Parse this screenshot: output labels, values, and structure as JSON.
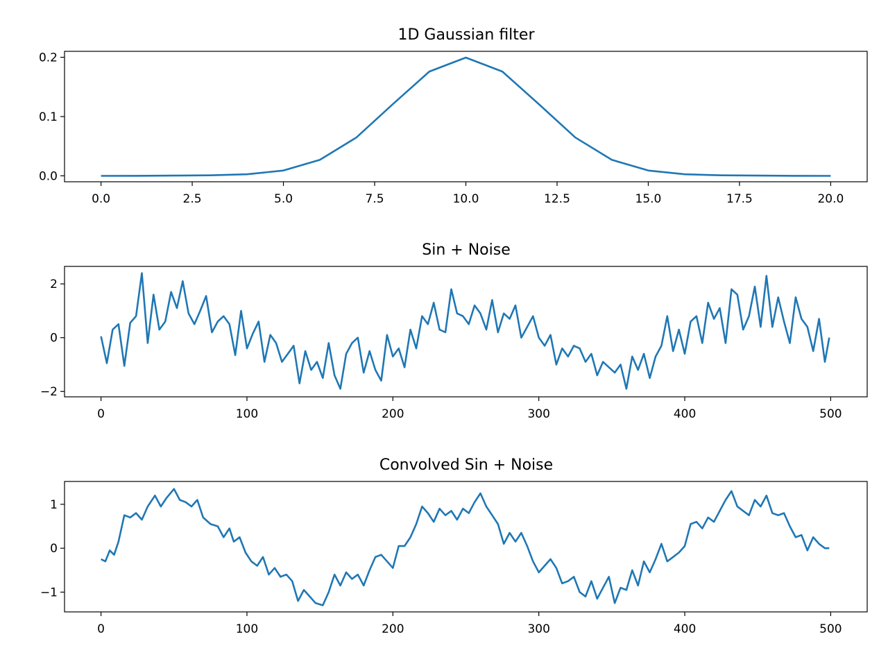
{
  "chart_data": [
    {
      "type": "line",
      "title": "1D Gaussian filter",
      "xlabel": "",
      "ylabel": "",
      "xlim": [
        -1,
        21
      ],
      "ylim": [
        -0.01,
        0.21
      ],
      "xticks": [
        0,
        2.5,
        5,
        7.5,
        10,
        12.5,
        15,
        17.5,
        20
      ],
      "xtick_labels": [
        "0.0",
        "2.5",
        "5.0",
        "7.5",
        "10.0",
        "12.5",
        "15.0",
        "17.5",
        "20.0"
      ],
      "yticks": [
        0,
        0.1,
        0.2
      ],
      "ytick_labels": [
        "0.0",
        "0.1",
        "0.2"
      ],
      "grid": false,
      "color": "#1f77b4",
      "series": [
        {
          "x": [
            0,
            1,
            2,
            3,
            4,
            5,
            6,
            7,
            8,
            9,
            10,
            11,
            12,
            13,
            14,
            15,
            16,
            17,
            18,
            19,
            20
          ],
          "y": [
            0.0,
            0.0001,
            0.0004,
            0.0009,
            0.0026,
            0.0089,
            0.027,
            0.0647,
            0.1209,
            0.176,
            0.1995,
            0.176,
            0.1209,
            0.0647,
            0.027,
            0.0089,
            0.0026,
            0.0009,
            0.0004,
            0.0001,
            0.0
          ]
        }
      ]
    },
    {
      "type": "line",
      "title": "Sin + Noise",
      "xlabel": "",
      "ylabel": "",
      "xlim": [
        -25,
        525
      ],
      "ylim": [
        -2.2,
        2.65
      ],
      "xticks": [
        0,
        100,
        200,
        300,
        400,
        500
      ],
      "xtick_labels": [
        "0",
        "100",
        "200",
        "300",
        "400",
        "500"
      ],
      "yticks": [
        -2,
        0,
        2
      ],
      "ytick_labels": [
        "−2",
        "0",
        "2"
      ],
      "grid": false,
      "color": "#1f77b4",
      "series": [
        {
          "x": [
            0,
            4,
            8,
            12,
            16,
            20,
            24,
            28,
            32,
            36,
            40,
            44,
            48,
            52,
            56,
            60,
            64,
            68,
            72,
            76,
            80,
            84,
            88,
            92,
            96,
            100,
            104,
            108,
            112,
            116,
            120,
            124,
            128,
            132,
            136,
            140,
            144,
            148,
            152,
            156,
            160,
            164,
            168,
            172,
            176,
            180,
            184,
            188,
            192,
            196,
            200,
            204,
            208,
            212,
            216,
            220,
            224,
            228,
            232,
            236,
            240,
            244,
            248,
            252,
            256,
            260,
            264,
            268,
            272,
            276,
            280,
            284,
            288,
            292,
            296,
            300,
            304,
            308,
            312,
            316,
            320,
            324,
            328,
            332,
            336,
            340,
            344,
            348,
            352,
            356,
            360,
            364,
            368,
            372,
            376,
            380,
            384,
            388,
            392,
            396,
            400,
            404,
            408,
            412,
            416,
            420,
            424,
            428,
            432,
            436,
            440,
            444,
            448,
            452,
            456,
            460,
            464,
            468,
            472,
            476,
            480,
            484,
            488,
            492,
            496,
            499
          ],
          "y": [
            0.05,
            -0.95,
            0.3,
            0.5,
            -1.05,
            0.55,
            0.8,
            2.4,
            -0.2,
            1.6,
            0.3,
            0.6,
            1.7,
            1.1,
            2.1,
            0.9,
            0.5,
            1.0,
            1.55,
            0.2,
            0.6,
            0.8,
            0.5,
            -0.65,
            1.0,
            -0.4,
            0.15,
            0.6,
            -0.9,
            0.1,
            -0.2,
            -0.9,
            -0.6,
            -0.3,
            -1.7,
            -0.5,
            -1.2,
            -0.9,
            -1.5,
            -0.2,
            -1.4,
            -1.9,
            -0.6,
            -0.2,
            0.0,
            -1.3,
            -0.5,
            -1.2,
            -1.6,
            0.1,
            -0.7,
            -0.4,
            -1.1,
            0.3,
            -0.4,
            0.8,
            0.5,
            1.3,
            0.3,
            0.2,
            1.8,
            0.9,
            0.8,
            0.5,
            1.2,
            0.9,
            0.3,
            1.4,
            0.2,
            0.9,
            0.7,
            1.2,
            0.0,
            0.4,
            0.8,
            0.0,
            -0.3,
            0.1,
            -1.0,
            -0.4,
            -0.7,
            -0.3,
            -0.4,
            -0.9,
            -0.6,
            -1.4,
            -0.9,
            -1.1,
            -1.3,
            -1.0,
            -1.9,
            -0.7,
            -1.2,
            -0.6,
            -1.5,
            -0.7,
            -0.3,
            0.8,
            -0.5,
            0.3,
            -0.6,
            0.6,
            0.8,
            -0.2,
            1.3,
            0.7,
            1.1,
            -0.2,
            1.8,
            1.6,
            0.3,
            0.8,
            1.9,
            0.4,
            2.3,
            0.4,
            1.5,
            0.6,
            -0.2,
            1.5,
            0.7,
            0.4,
            -0.5,
            0.7,
            -0.9,
            0.0
          ]
        }
      ]
    },
    {
      "type": "line",
      "title": "Convolved Sin + Noise",
      "xlabel": "",
      "ylabel": "",
      "xlim": [
        -25,
        525
      ],
      "ylim": [
        -1.45,
        1.52
      ],
      "xticks": [
        0,
        100,
        200,
        300,
        400,
        500
      ],
      "xtick_labels": [
        "0",
        "100",
        "200",
        "300",
        "400",
        "500"
      ],
      "yticks": [
        -1,
        0,
        1
      ],
      "ytick_labels": [
        "−1",
        "0",
        "1"
      ],
      "grid": false,
      "color": "#1f77b4",
      "series": [
        {
          "x": [
            0,
            3,
            6,
            9,
            12,
            16,
            20,
            24,
            28,
            32,
            37,
            41,
            45,
            50,
            54,
            58,
            62,
            66,
            70,
            75,
            80,
            84,
            88,
            91,
            95,
            99,
            103,
            107,
            111,
            115,
            119,
            123,
            127,
            131,
            135,
            139,
            143,
            147,
            152,
            156,
            160,
            164,
            168,
            172,
            176,
            180,
            184,
            188,
            192,
            196,
            200,
            204,
            208,
            212,
            216,
            220,
            224,
            228,
            232,
            236,
            240,
            244,
            248,
            252,
            256,
            260,
            264,
            268,
            272,
            276,
            280,
            284,
            288,
            292,
            296,
            300,
            304,
            308,
            312,
            316,
            320,
            324,
            328,
            332,
            336,
            340,
            344,
            348,
            352,
            356,
            360,
            364,
            368,
            372,
            376,
            380,
            384,
            388,
            392,
            396,
            400,
            404,
            408,
            412,
            416,
            420,
            424,
            428,
            432,
            436,
            440,
            444,
            448,
            452,
            456,
            460,
            464,
            468,
            472,
            476,
            480,
            484,
            488,
            492,
            496,
            499
          ],
          "y": [
            -0.25,
            -0.3,
            -0.05,
            -0.15,
            0.15,
            0.75,
            0.7,
            0.8,
            0.65,
            0.95,
            1.2,
            0.95,
            1.15,
            1.35,
            1.1,
            1.05,
            0.95,
            1.1,
            0.7,
            0.55,
            0.5,
            0.25,
            0.45,
            0.15,
            0.25,
            -0.1,
            -0.3,
            -0.4,
            -0.2,
            -0.6,
            -0.45,
            -0.65,
            -0.6,
            -0.75,
            -1.2,
            -0.95,
            -1.1,
            -1.25,
            -1.3,
            -1.0,
            -0.6,
            -0.85,
            -0.55,
            -0.7,
            -0.6,
            -0.85,
            -0.5,
            -0.2,
            -0.15,
            -0.3,
            -0.45,
            0.05,
            0.05,
            0.25,
            0.55,
            0.95,
            0.8,
            0.6,
            0.9,
            0.75,
            0.85,
            0.65,
            0.9,
            0.8,
            1.05,
            1.25,
            0.95,
            0.75,
            0.55,
            0.1,
            0.35,
            0.15,
            0.35,
            0.05,
            -0.3,
            -0.55,
            -0.4,
            -0.25,
            -0.45,
            -0.8,
            -0.75,
            -0.65,
            -1.0,
            -1.1,
            -0.75,
            -1.15,
            -0.9,
            -0.65,
            -1.25,
            -0.9,
            -0.95,
            -0.5,
            -0.85,
            -0.3,
            -0.55,
            -0.25,
            0.1,
            -0.3,
            -0.2,
            -0.1,
            0.05,
            0.55,
            0.6,
            0.45,
            0.7,
            0.6,
            0.85,
            1.1,
            1.3,
            0.95,
            0.85,
            0.75,
            1.1,
            0.95,
            1.2,
            0.8,
            0.75,
            0.8,
            0.5,
            0.25,
            0.3,
            -0.05,
            0.25,
            0.1,
            0.0,
            0.0
          ]
        }
      ]
    }
  ]
}
